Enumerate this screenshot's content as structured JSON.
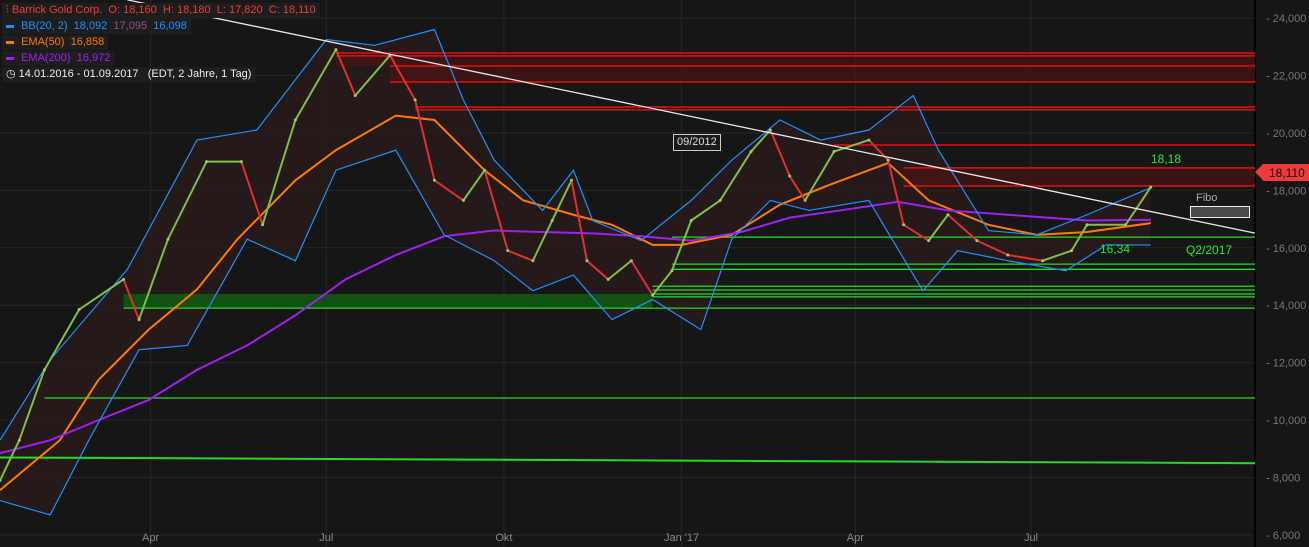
{
  "legend": {
    "instrument": {
      "name": "Barrick Gold Corp.",
      "o_label": "O:",
      "o": "18,160",
      "h_label": "H:",
      "h": "18,180",
      "l_label": "L:",
      "l": "17,820",
      "c_label": "C:",
      "c": "18,110",
      "icon": "candlestick-icon",
      "color": "#f03a3a"
    },
    "bb": {
      "label": "BB(20, 2)",
      "upper": "18,092",
      "mid": "17,095",
      "lower": "16,098",
      "color": "#1e90ff",
      "mid_color": "#9a4a8a"
    },
    "ema50": {
      "label": "EMA(50)",
      "value": "16,858",
      "color": "#ff7a00"
    },
    "ema200": {
      "label": "EMA(200)",
      "value": "16,972",
      "color": "#a020f0"
    },
    "range": {
      "icon": "clock-icon",
      "dates": "14.01.2016 - 01.09.2017",
      "info": "(EDT, 2 Jahre, 1 Tag)"
    }
  },
  "annotations": {
    "ref_box": "09/2012",
    "target": "18,18",
    "support": "16,34",
    "quarter": "Q2/2017",
    "fibo": "Fibo",
    "last_price": "18,110"
  },
  "chart_data": {
    "type": "line",
    "title": "Barrick Gold Corp.",
    "xlim": [
      "2016-01-14",
      "2017-10-25"
    ],
    "ylim": [
      6000,
      24000
    ],
    "y_ticks": [
      "6,000",
      "8,000",
      "10,000",
      "12,000",
      "14,000",
      "16,000",
      "18,000",
      "20,000",
      "22,000",
      "24,000"
    ],
    "y_tick_values": [
      6000,
      8000,
      10000,
      12000,
      14000,
      16000,
      18000,
      20000,
      22000,
      24000
    ],
    "x_ticks": [
      {
        "label": "Apr",
        "date": "2016-04-01"
      },
      {
        "label": "Jul",
        "date": "2016-07-01"
      },
      {
        "label": "Okt",
        "date": "2016-10-01"
      },
      {
        "label": "Jan '17",
        "date": "2017-01-01"
      },
      {
        "label": "Apr",
        "date": "2017-04-01"
      },
      {
        "label": "Jul",
        "date": "2017-07-01"
      }
    ],
    "grid": true,
    "price": [
      [
        "2016-01-14",
        7900
      ],
      [
        "2016-01-24",
        9300
      ],
      [
        "2016-02-06",
        11750
      ],
      [
        "2016-02-24",
        13850
      ],
      [
        "2016-03-18",
        14900
      ],
      [
        "2016-03-26",
        13500
      ],
      [
        "2016-04-10",
        16300
      ],
      [
        "2016-04-30",
        19000
      ],
      [
        "2016-05-18",
        19000
      ],
      [
        "2016-05-29",
        16800
      ],
      [
        "2016-06-15",
        20450
      ],
      [
        "2016-07-06",
        22900
      ],
      [
        "2016-07-16",
        21300
      ],
      [
        "2016-08-03",
        22700
      ],
      [
        "2016-08-16",
        21150
      ],
      [
        "2016-08-26",
        18350
      ],
      [
        "2016-09-10",
        17650
      ],
      [
        "2016-09-21",
        18700
      ],
      [
        "2016-10-03",
        15900
      ],
      [
        "2016-10-16",
        15550
      ],
      [
        "2016-10-26",
        16950
      ],
      [
        "2016-11-05",
        18350
      ],
      [
        "2016-11-13",
        15550
      ],
      [
        "2016-11-24",
        14900
      ],
      [
        "2016-12-06",
        15550
      ],
      [
        "2016-12-17",
        14350
      ],
      [
        "2016-12-27",
        15200
      ],
      [
        "2017-01-06",
        16950
      ],
      [
        "2017-01-21",
        17650
      ],
      [
        "2017-02-06",
        19350
      ],
      [
        "2017-02-16",
        20100
      ],
      [
        "2017-02-26",
        18500
      ],
      [
        "2017-03-06",
        17650
      ],
      [
        "2017-03-21",
        19350
      ],
      [
        "2017-04-08",
        19750
      ],
      [
        "2017-04-18",
        19050
      ],
      [
        "2017-04-26",
        16800
      ],
      [
        "2017-05-09",
        16250
      ],
      [
        "2017-05-19",
        17150
      ],
      [
        "2017-06-03",
        16250
      ],
      [
        "2017-06-19",
        15750
      ],
      [
        "2017-07-07",
        15550
      ],
      [
        "2017-07-22",
        15900
      ],
      [
        "2017-07-30",
        16800
      ],
      [
        "2017-08-19",
        16800
      ],
      [
        "2017-09-01",
        18110
      ]
    ],
    "series": [
      {
        "name": "EMA(50)",
        "color": "#ff7a00",
        "points": [
          [
            "2016-01-14",
            7560
          ],
          [
            "2016-02-14",
            9300
          ],
          [
            "2016-03-05",
            11400
          ],
          [
            "2016-03-31",
            13150
          ],
          [
            "2016-04-25",
            14550
          ],
          [
            "2016-05-16",
            16300
          ],
          [
            "2016-06-15",
            18350
          ],
          [
            "2016-07-06",
            19400
          ],
          [
            "2016-08-06",
            20600
          ],
          [
            "2016-08-26",
            20450
          ],
          [
            "2016-09-21",
            18700
          ],
          [
            "2016-10-11",
            17650
          ],
          [
            "2016-11-06",
            17150
          ],
          [
            "2016-11-26",
            16800
          ],
          [
            "2016-12-17",
            16100
          ],
          [
            "2017-01-01",
            16100
          ],
          [
            "2017-01-27",
            16450
          ],
          [
            "2017-02-21",
            17500
          ],
          [
            "2017-03-19",
            18200
          ],
          [
            "2017-04-18",
            18950
          ],
          [
            "2017-05-09",
            17650
          ],
          [
            "2017-06-09",
            16800
          ],
          [
            "2017-07-04",
            16450
          ],
          [
            "2017-07-30",
            16550
          ],
          [
            "2017-09-01",
            16858
          ]
        ]
      },
      {
        "name": "EMA(200)",
        "color": "#a020f0",
        "points": [
          [
            "2016-01-14",
            8850
          ],
          [
            "2016-02-09",
            9300
          ],
          [
            "2016-03-05",
            10000
          ],
          [
            "2016-03-31",
            10700
          ],
          [
            "2016-04-25",
            11750
          ],
          [
            "2016-05-21",
            12600
          ],
          [
            "2016-06-15",
            13650
          ],
          [
            "2016-07-11",
            14900
          ],
          [
            "2016-08-06",
            15750
          ],
          [
            "2016-08-31",
            16400
          ],
          [
            "2016-09-26",
            16600
          ],
          [
            "2016-10-21",
            16550
          ],
          [
            "2016-11-16",
            16500
          ],
          [
            "2016-12-11",
            16400
          ],
          [
            "2017-01-06",
            16250
          ],
          [
            "2017-02-01",
            16550
          ],
          [
            "2017-02-26",
            17050
          ],
          [
            "2017-03-24",
            17300
          ],
          [
            "2017-04-23",
            17600
          ],
          [
            "2017-05-19",
            17300
          ],
          [
            "2017-06-19",
            17150
          ],
          [
            "2017-07-30",
            16950
          ],
          [
            "2017-09-01",
            16972
          ]
        ]
      },
      {
        "name": "BB upper",
        "color": "#1e90ff",
        "points": [
          [
            "2016-01-14",
            9300
          ],
          [
            "2016-02-09",
            12100
          ],
          [
            "2016-03-20",
            15250
          ],
          [
            "2016-04-25",
            19750
          ],
          [
            "2016-05-26",
            20100
          ],
          [
            "2016-07-01",
            23250
          ],
          [
            "2016-07-26",
            23050
          ],
          [
            "2016-08-26",
            23600
          ],
          [
            "2016-09-10",
            21150
          ],
          [
            "2016-09-26",
            19050
          ],
          [
            "2016-10-21",
            17300
          ],
          [
            "2016-11-06",
            18700
          ],
          [
            "2016-11-16",
            16950
          ],
          [
            "2016-12-11",
            16250
          ],
          [
            "2017-01-06",
            17650
          ],
          [
            "2017-01-27",
            19050
          ],
          [
            "2017-02-21",
            20450
          ],
          [
            "2017-03-14",
            19750
          ],
          [
            "2017-04-08",
            20100
          ],
          [
            "2017-05-01",
            21300
          ],
          [
            "2017-05-14",
            19400
          ],
          [
            "2017-06-09",
            16600
          ],
          [
            "2017-07-04",
            16450
          ],
          [
            "2017-07-30",
            17150
          ],
          [
            "2017-09-01",
            18092
          ]
        ]
      },
      {
        "name": "BB lower",
        "color": "#1e90ff",
        "points": [
          [
            "2016-01-14",
            7200
          ],
          [
            "2016-02-09",
            6700
          ],
          [
            "2016-02-29",
            9300
          ],
          [
            "2016-03-26",
            12450
          ],
          [
            "2016-04-20",
            12600
          ],
          [
            "2016-05-21",
            16300
          ],
          [
            "2016-06-15",
            15550
          ],
          [
            "2016-07-06",
            18700
          ],
          [
            "2016-08-06",
            19400
          ],
          [
            "2016-08-31",
            16450
          ],
          [
            "2016-09-26",
            15550
          ],
          [
            "2016-10-16",
            14500
          ],
          [
            "2016-11-06",
            15050
          ],
          [
            "2016-11-26",
            13500
          ],
          [
            "2016-12-17",
            14200
          ],
          [
            "2017-01-11",
            13150
          ],
          [
            "2017-01-27",
            16300
          ],
          [
            "2017-02-16",
            17650
          ],
          [
            "2017-03-08",
            17300
          ],
          [
            "2017-04-08",
            17650
          ],
          [
            "2017-05-06",
            14500
          ],
          [
            "2017-05-24",
            15900
          ],
          [
            "2017-06-19",
            15550
          ],
          [
            "2017-07-19",
            15200
          ],
          [
            "2017-08-09",
            16100
          ],
          [
            "2017-09-01",
            16098
          ]
        ]
      }
    ],
    "trendline": {
      "color": "#e8e8e8",
      "from": [
        "2016-03-20",
        24630
      ],
      "to": [
        "2017-10-25",
        16510
      ]
    },
    "resistance_lines": {
      "color": "#e01010",
      "levels": [
        [
          22780,
          "2016-07-06"
        ],
        [
          22680,
          "2016-07-06"
        ],
        [
          22330,
          "2016-08-03"
        ],
        [
          21770,
          "2016-08-03"
        ],
        [
          20900,
          "2016-08-16"
        ],
        [
          20800,
          "2016-08-16"
        ],
        [
          19580,
          "2017-03-21"
        ],
        [
          18780,
          "2017-04-26"
        ],
        [
          18150,
          "2017-04-26"
        ]
      ]
    },
    "resistance_zones": [
      [
        22330,
        21770,
        "2016-08-03"
      ],
      [
        18780,
        18150,
        "2017-04-26"
      ],
      [
        22680,
        22330,
        "2016-07-06"
      ]
    ],
    "support_lines": {
      "color": "#22dd22",
      "levels": [
        [
          16370,
          "2016-12-27"
        ],
        [
          15430,
          "2016-12-27"
        ],
        [
          15250,
          "2016-12-27"
        ],
        [
          14660,
          "2016-12-17"
        ],
        [
          14530,
          "2016-12-17"
        ],
        [
          14390,
          "2016-12-17"
        ],
        [
          14290,
          "2016-12-17"
        ],
        [
          13900,
          "2016-03-18"
        ],
        [
          10770,
          "2016-02-06"
        ]
      ]
    },
    "support_zone": {
      "top": 14390,
      "bottom": 13900,
      "from": "2016-03-18",
      "to": "2016-12-17"
    },
    "sloped_support": {
      "from": [
        "2016-01-14",
        8700
      ],
      "to": [
        "2017-10-25",
        8500
      ]
    }
  }
}
